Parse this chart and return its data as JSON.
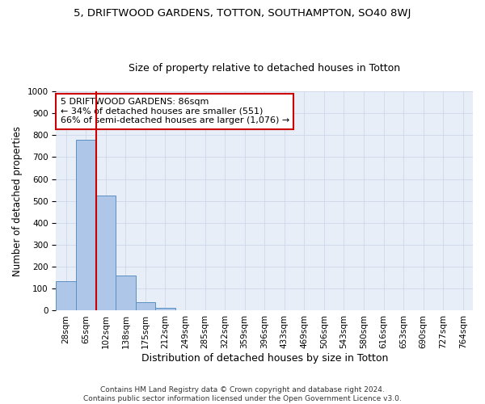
{
  "title_line1": "5, DRIFTWOOD GARDENS, TOTTON, SOUTHAMPTON, SO40 8WJ",
  "title_line2": "Size of property relative to detached houses in Totton",
  "xlabel": "Distribution of detached houses by size in Totton",
  "ylabel": "Number of detached properties",
  "footnote": "Contains HM Land Registry data © Crown copyright and database right 2024.\nContains public sector information licensed under the Open Government Licence v3.0.",
  "bar_labels": [
    "28sqm",
    "65sqm",
    "102sqm",
    "138sqm",
    "175sqm",
    "212sqm",
    "249sqm",
    "285sqm",
    "322sqm",
    "359sqm",
    "396sqm",
    "433sqm",
    "469sqm",
    "506sqm",
    "543sqm",
    "580sqm",
    "616sqm",
    "653sqm",
    "690sqm",
    "727sqm",
    "764sqm"
  ],
  "bar_values": [
    133,
    778,
    525,
    160,
    37,
    14,
    0,
    0,
    0,
    0,
    0,
    0,
    0,
    0,
    0,
    0,
    0,
    0,
    0,
    0,
    0
  ],
  "bar_color": "#aec6e8",
  "bar_edge_color": "#5a8fc0",
  "annotation_text": "5 DRIFTWOOD GARDENS: 86sqm\n← 34% of detached houses are smaller (551)\n66% of semi-detached houses are larger (1,076) →",
  "annotation_box_color": "#ffffff",
  "annotation_box_edge_color": "#cc0000",
  "vline_color": "#cc0000",
  "ylim": [
    0,
    1000
  ],
  "yticks": [
    0,
    100,
    200,
    300,
    400,
    500,
    600,
    700,
    800,
    900,
    1000
  ],
  "grid_color": "#c8d4e8",
  "background_color": "#e8eef8",
  "title1_fontsize": 9.5,
  "title2_fontsize": 9,
  "xlabel_fontsize": 9,
  "ylabel_fontsize": 8.5,
  "tick_fontsize": 7.5,
  "annotation_fontsize": 8,
  "footnote_fontsize": 6.5
}
